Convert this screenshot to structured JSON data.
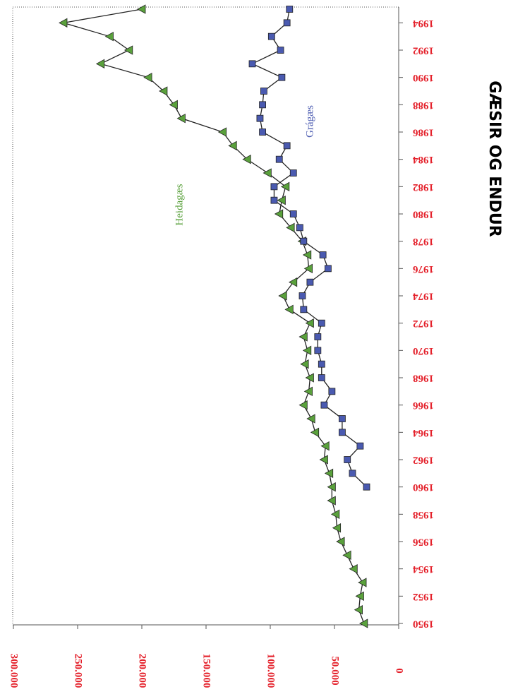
{
  "chart_data": {
    "type": "line",
    "title": "GÆSIR OG ENDUR",
    "x": [
      1950,
      1951,
      1952,
      1953,
      1954,
      1955,
      1956,
      1957,
      1958,
      1959,
      1960,
      1961,
      1962,
      1963,
      1964,
      1965,
      1966,
      1967,
      1968,
      1969,
      1970,
      1971,
      1972,
      1973,
      1974,
      1975,
      1976,
      1977,
      1978,
      1979,
      1980,
      1981,
      1982,
      1983,
      1984,
      1985,
      1986,
      1987,
      1988,
      1989,
      1990,
      1991,
      1992,
      1993,
      1994,
      1995
    ],
    "series": [
      {
        "name": "Heidagæs",
        "color": "#5aa13c",
        "marker": "triangle",
        "values": [
          27000,
          31000,
          30000,
          28000,
          35000,
          40000,
          45000,
          48000,
          49000,
          52000,
          52000,
          54000,
          58000,
          57000,
          65000,
          68000,
          74000,
          70000,
          69000,
          73000,
          71000,
          74000,
          69000,
          85000,
          90000,
          82000,
          70000,
          71000,
          75000,
          84000,
          93000,
          91000,
          88000,
          102000,
          118000,
          129000,
          137000,
          169000,
          175000,
          183000,
          195000,
          232000,
          210000,
          225000,
          261000,
          200000
        ]
      },
      {
        "name": "Grágæs",
        "color": "#4a5ab0",
        "marker": "square",
        "values": [
          null,
          null,
          null,
          null,
          null,
          null,
          null,
          null,
          null,
          null,
          25000,
          36000,
          40000,
          30000,
          44000,
          44000,
          58000,
          52000,
          60000,
          60000,
          63000,
          63000,
          60000,
          74000,
          75000,
          69000,
          55000,
          59000,
          74000,
          77000,
          82000,
          97000,
          97000,
          82000,
          93000,
          87000,
          106000,
          108000,
          106000,
          105000,
          91000,
          114000,
          92000,
          99000,
          87000,
          85000
        ]
      }
    ],
    "xlim": [
      1950,
      1995
    ],
    "xticks": [
      1950,
      1952,
      1954,
      1956,
      1958,
      1960,
      1962,
      1964,
      1966,
      1968,
      1970,
      1972,
      1974,
      1976,
      1978,
      1980,
      1982,
      1984,
      1986,
      1988,
      1990,
      1992,
      1994
    ],
    "ylim": [
      0,
      300000
    ],
    "yticks": [
      0,
      {
        "value": 50000,
        "label": "50.000"
      },
      {
        "value": 100000,
        "label": "100.000"
      },
      {
        "value": 150000,
        "label": "150.000"
      },
      {
        "value": 200000,
        "label": "200.000"
      },
      {
        "value": 250000,
        "label": "250.000"
      },
      {
        "value": 300000,
        "label": "300.000"
      }
    ]
  }
}
